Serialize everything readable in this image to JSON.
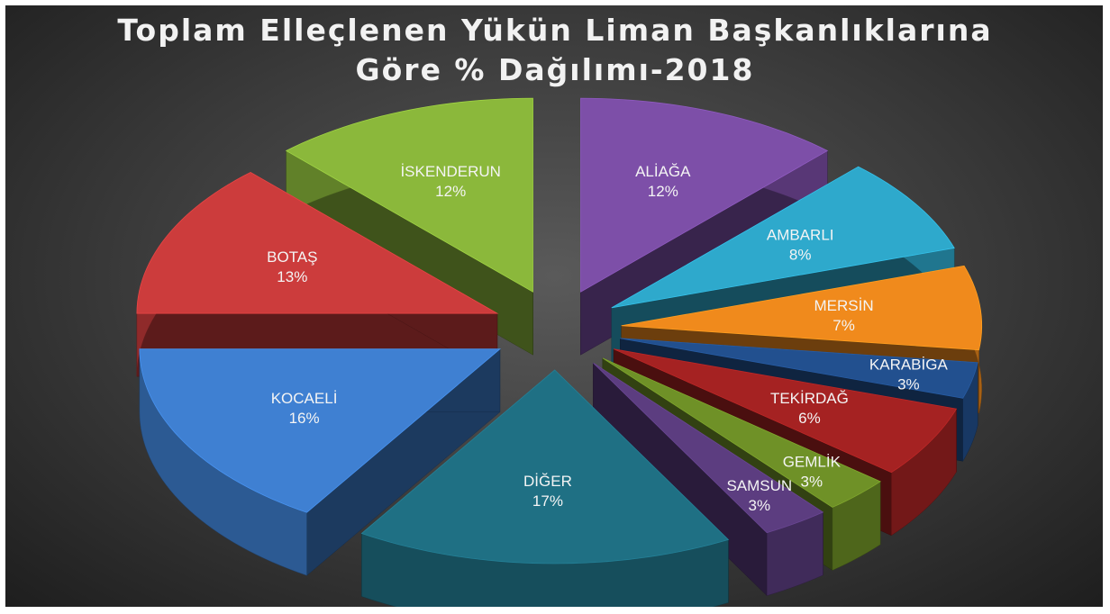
{
  "chart_data": {
    "type": "pie",
    "title": "Toplam Elleçlenen Yükün Liman Başkanlıklarına Göre % Dağılımı-2018",
    "categories": [
      "ALİAĞA",
      "AMBARLI",
      "MERSİN",
      "KARABİGA",
      "TEKİRDAĞ",
      "GEMLİK",
      "SAMSUN",
      "DİĞER",
      "KOCAELİ",
      "BOTAŞ",
      "İSKENDERUN"
    ],
    "values": [
      12,
      8,
      7,
      3,
      6,
      3,
      3,
      17,
      16,
      13,
      12
    ],
    "value_labels": [
      "12%",
      "8%",
      "7%",
      "3%",
      "6%",
      "3%",
      "3%",
      "17%",
      "16%",
      "13%",
      "12%"
    ],
    "colors": [
      "#7d4fa8",
      "#2ea9cc",
      "#f08a1c",
      "#22508f",
      "#a52222",
      "#6f9127",
      "#5c3d80",
      "#1f7084",
      "#3f80d2",
      "#cc3c3c",
      "#8bb83b"
    ]
  }
}
